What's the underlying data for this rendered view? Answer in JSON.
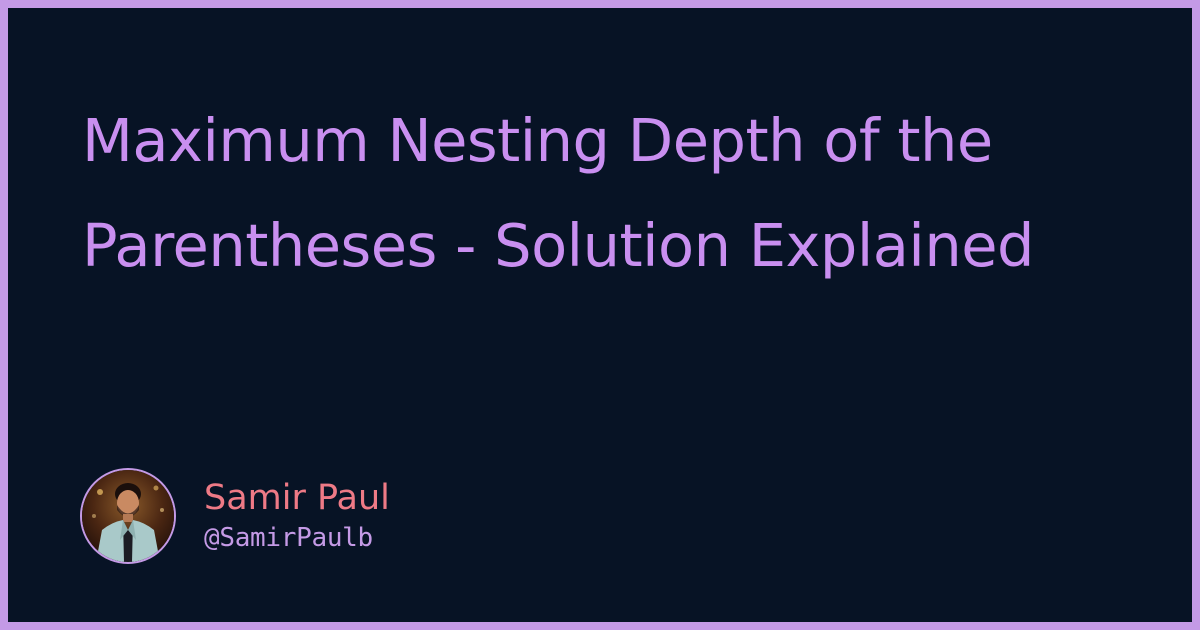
{
  "post": {
    "title": "Maximum Nesting Depth of the Parentheses - Solution Explained"
  },
  "author": {
    "name": "Samir Paul",
    "handle": "@SamirPaulb",
    "avatar_icon": "author-avatar-photo"
  },
  "colors": {
    "background": "#071325",
    "frame": "#c49ae6",
    "title": "#c98ff0",
    "name": "#ee7a86",
    "handle": "#c49ae6"
  }
}
